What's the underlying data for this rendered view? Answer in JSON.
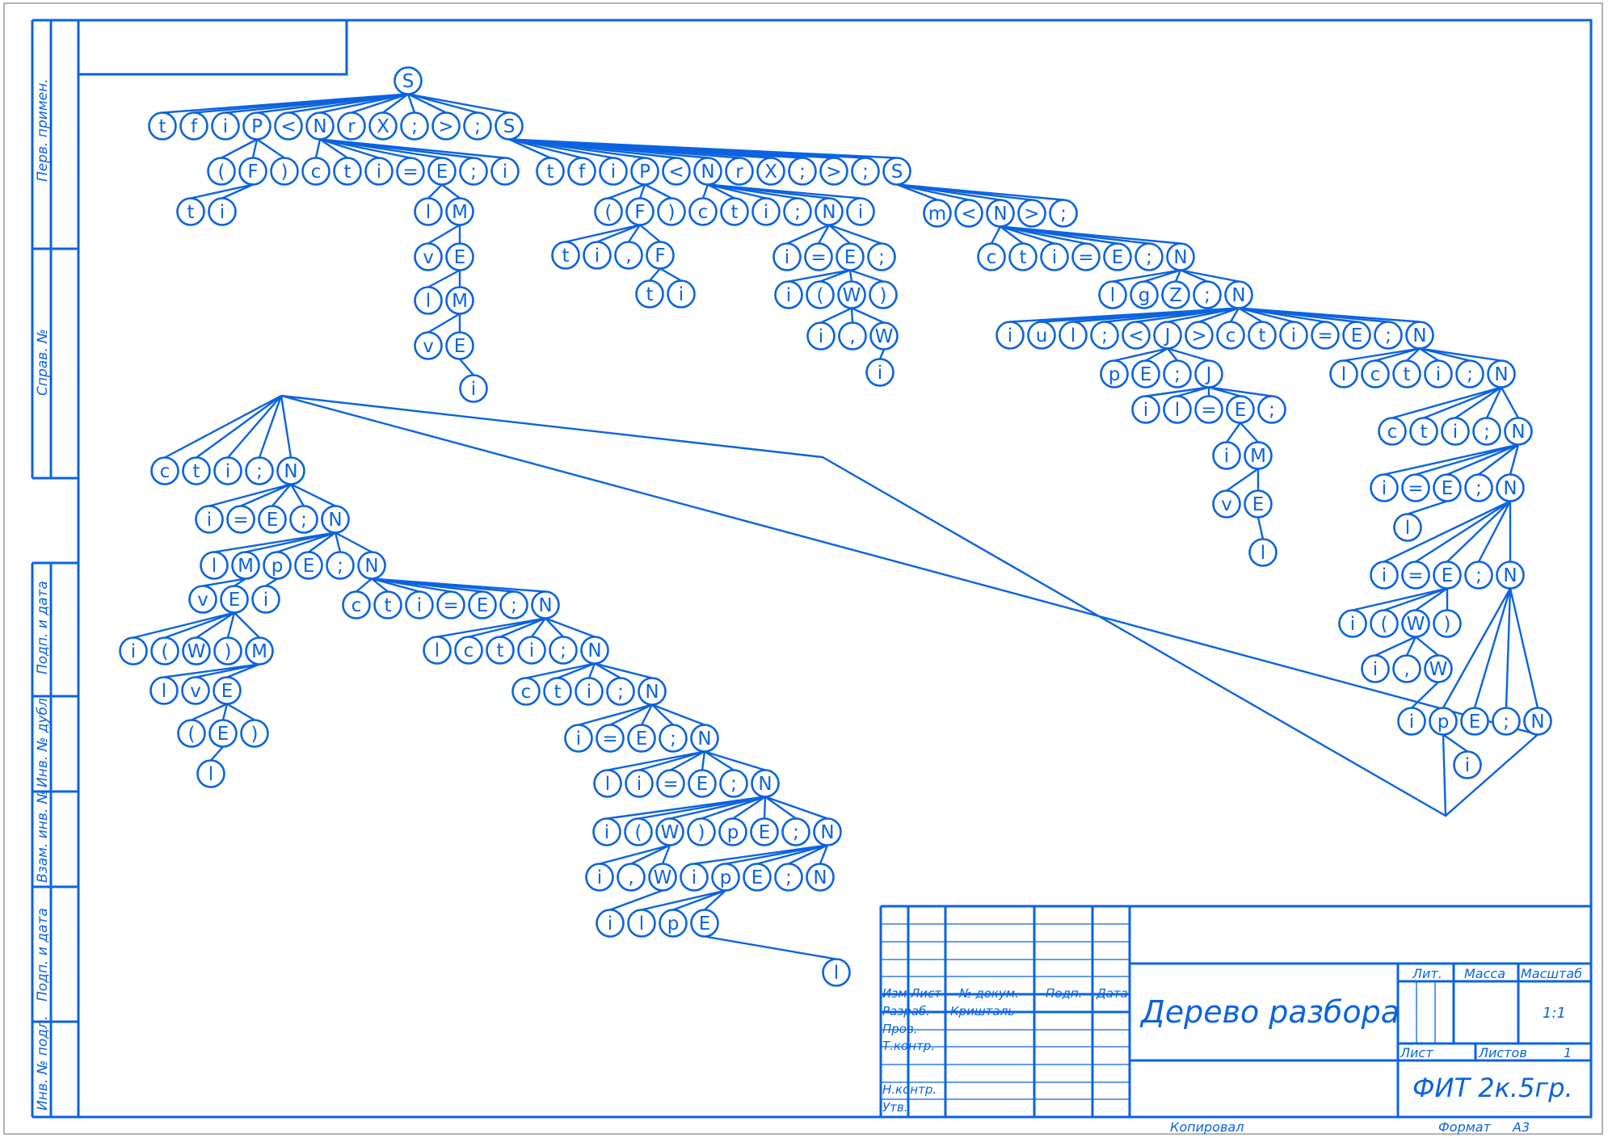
{
  "sidebar": {
    "perv_primen": "Перв. примен.",
    "sprav_no": "Справ. №",
    "podp_data_1": "Подп. и дата",
    "inv_no_dubl": "Инв. № дубл.",
    "vzam_inv_no": "Взам. инв. №",
    "podp_data_2": "Подп. и дата",
    "inv_no_podl": "Инв. № подл."
  },
  "title_block": {
    "col_izm": "Изм.",
    "col_list": "Лист",
    "col_no_dokum": "№ докум.",
    "col_podp": "Подп.",
    "col_data": "Дата",
    "row_razrab": "Разраб.",
    "razrab_name": "Кришталь",
    "row_prov": "Пров.",
    "row_tkontr": "Т.контр.",
    "row_nkontr": "Н.контр.",
    "row_utv": "Утв.",
    "document_title": "Дерево разбора",
    "lit": "Лит.",
    "massa": "Масса",
    "masshtab": "Масштаб",
    "scale_value": "1:1",
    "list": "Лист",
    "listov": "Листов",
    "listov_value": "1",
    "organization": "ФИТ 2к.5гр."
  },
  "footer": {
    "kopiroval": "Копировал",
    "format": "Формат",
    "format_value": "А3"
  },
  "tree": {
    "row_lines": [
      [
        "S"
      ],
      [
        "t",
        "f",
        "i",
        "P",
        "<",
        "N",
        "r",
        "X",
        ";",
        ">",
        ";",
        "S"
      ],
      [
        "(",
        "F",
        ")",
        "c",
        "t",
        "i",
        "=",
        "E",
        ";",
        "i"
      ],
      [
        "t",
        "i"
      ],
      [
        "l",
        "M"
      ],
      [
        "v",
        "E"
      ],
      [
        "l",
        "M"
      ],
      [
        "v",
        "E"
      ],
      [
        "i"
      ],
      [
        "t",
        "f",
        "i",
        "P",
        "<",
        "N",
        "r",
        "X",
        ";",
        ">",
        ";",
        "S"
      ],
      [
        "(",
        "F",
        ")",
        "c",
        "t",
        "i",
        ";",
        "N",
        "i"
      ],
      [
        "t",
        "i",
        ",",
        "F"
      ],
      [
        "t",
        "i"
      ],
      [
        "i",
        "=",
        "E",
        ";"
      ],
      [
        "i",
        "(",
        "W",
        ")"
      ],
      [
        "i",
        ",",
        "W"
      ],
      [
        "i"
      ],
      [
        "m",
        "<",
        "N",
        ">",
        ";"
      ],
      [
        "c",
        "t",
        "i",
        "=",
        "E",
        ";",
        "N"
      ],
      [
        "l",
        "g",
        "Z",
        ";",
        "N"
      ],
      [
        "i",
        "u",
        "l",
        ";",
        "<",
        "J",
        ">",
        "c",
        "t",
        "i",
        "=",
        "E",
        ";",
        "N"
      ],
      [
        "p",
        "E",
        ";",
        "J"
      ],
      [
        "i",
        "l",
        "=",
        "E",
        ";"
      ],
      [
        "i",
        "M"
      ],
      [
        "v",
        "E"
      ],
      [
        "l"
      ],
      [
        "l",
        "c",
        "t",
        "i",
        ";",
        "N"
      ],
      [
        "c",
        "t",
        "i",
        ";",
        "N"
      ],
      [
        "i",
        "=",
        "E",
        ";",
        "N"
      ],
      [
        "l"
      ],
      [
        "i",
        "=",
        "E",
        ";",
        "N"
      ],
      [
        "i",
        "(",
        "W",
        ")"
      ],
      [
        "i",
        ",",
        "W"
      ],
      [
        "i",
        "p",
        "E",
        ";",
        "N"
      ],
      [
        "i"
      ],
      [
        "c",
        "t",
        "i",
        ";",
        "N"
      ],
      [
        "i",
        "=",
        "E",
        ";",
        "N"
      ],
      [
        "l",
        "M",
        "p",
        "E",
        ";",
        "N"
      ],
      [
        "v",
        "E",
        "i"
      ],
      [
        "c",
        "t",
        "i",
        "=",
        "E",
        ";",
        "N"
      ],
      [
        "i",
        "(",
        "W",
        ")",
        "M"
      ],
      [
        "l",
        "v",
        "E"
      ],
      [
        "(",
        "E",
        ")"
      ],
      [
        "l"
      ],
      [
        "l",
        "c",
        "t",
        "i",
        ";",
        "N"
      ],
      [
        "c",
        "t",
        "i",
        ";",
        "N"
      ],
      [
        "i",
        "=",
        "E",
        ";",
        "N"
      ],
      [
        "l",
        "i",
        "=",
        "E",
        ";",
        "N"
      ],
      [
        "i",
        "(",
        "W",
        ")",
        "p",
        "E",
        ";",
        "N"
      ],
      [
        "i",
        ",",
        "W",
        "i",
        "p",
        "E",
        ";",
        "N"
      ],
      [
        "i",
        "l",
        "p",
        "E"
      ],
      [
        "l"
      ]
    ]
  }
}
